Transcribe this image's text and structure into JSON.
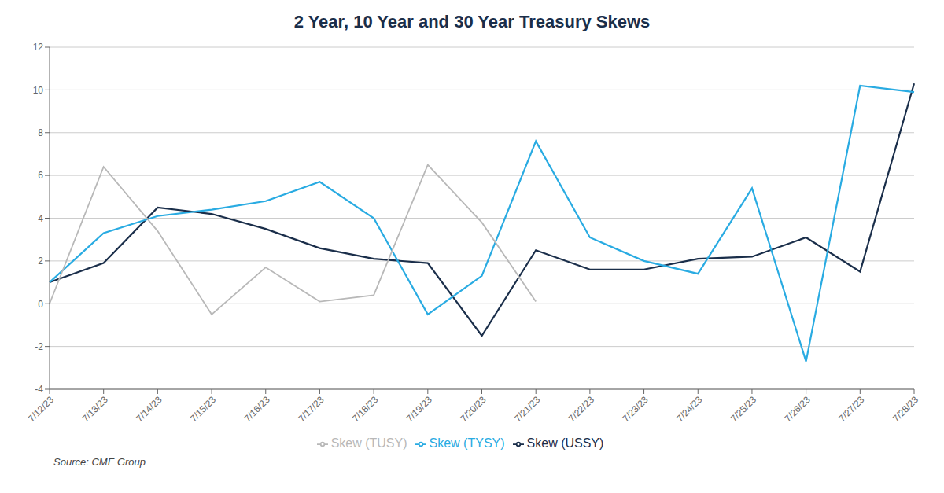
{
  "chart_data": {
    "type": "line",
    "title": "2 Year, 10 Year and 30 Year Treasury Skews",
    "annotations": [
      "Source: CME Group"
    ],
    "categories": [
      "7/12/23",
      "7/13/23",
      "7/14/23",
      "7/15/23",
      "7/16/23",
      "7/17/23",
      "7/18/23",
      "7/19/23",
      "7/20/23",
      "7/21/23",
      "7/22/23",
      "7/23/23",
      "7/24/23",
      "7/25/23",
      "7/26/23",
      "7/27/23",
      "7/28/23"
    ],
    "series": [
      {
        "name": "Skew (USSY)",
        "color": "#1a2e4a",
        "values": [
          1.0,
          1.9,
          4.5,
          4.2,
          3.5,
          2.6,
          2.1,
          1.9,
          -1.5,
          2.5,
          1.6,
          1.6,
          2.1,
          2.2,
          3.1,
          1.5,
          10.3
        ]
      },
      {
        "name": "Skew (TYSY)",
        "color": "#29abe2",
        "values": [
          1.0,
          3.3,
          4.1,
          4.4,
          4.8,
          5.7,
          4.0,
          -0.5,
          1.3,
          7.6,
          3.1,
          2.0,
          1.4,
          5.4,
          -2.7,
          10.2,
          9.9
        ]
      },
      {
        "name": "Skew (TUSY)",
        "color": "#b8b8b8",
        "values": [
          0.0,
          6.4,
          3.4,
          -0.5,
          1.7,
          0.1,
          0.4,
          6.5,
          3.8,
          0.1,
          null,
          null,
          null,
          null,
          null,
          null,
          null
        ]
      }
    ],
    "ylim": [
      -4,
      12
    ],
    "yticks": [
      -4,
      -2,
      0,
      2,
      4,
      6,
      8,
      10,
      12
    ],
    "grid": true,
    "legend": "bottom"
  }
}
